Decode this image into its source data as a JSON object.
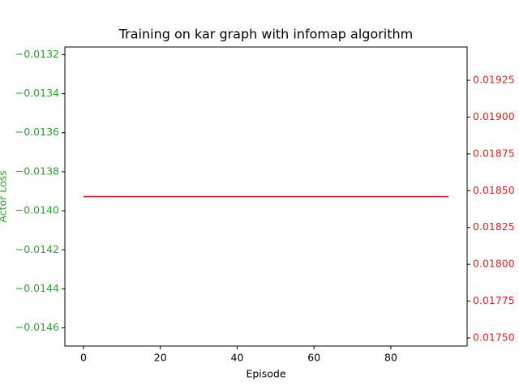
{
  "chart_data": {
    "type": "line",
    "title": "Training on kar graph with infomap algorithm",
    "xlabel": "Episode",
    "ylabel": "Actor Loss",
    "x": [
      0,
      1,
      2,
      3,
      4,
      5,
      6,
      7,
      8,
      9,
      10,
      11,
      12,
      13,
      14,
      15,
      16,
      17,
      18,
      19,
      20,
      21,
      22,
      23,
      24,
      25,
      26,
      27,
      28,
      29,
      30,
      31,
      32,
      33,
      34,
      35,
      36,
      37,
      38,
      39,
      40,
      41,
      42,
      43,
      44,
      45,
      46,
      47,
      48,
      49,
      50,
      51,
      52,
      53,
      54,
      55,
      56,
      57,
      58,
      59,
      60,
      61,
      62,
      63,
      64,
      65,
      66,
      67,
      68,
      69,
      70,
      71,
      72,
      73,
      74,
      75,
      76,
      77,
      78,
      79,
      80,
      81,
      82,
      83,
      84,
      85,
      86,
      87,
      88,
      89,
      90,
      91,
      92,
      93,
      94,
      95
    ],
    "series": [
      {
        "name": "Actor Loss",
        "color": "#2ca02c",
        "axis": "y",
        "values": [
          -0.013927,
          -0.013927,
          -0.013927,
          -0.013927,
          -0.013927,
          -0.013927,
          -0.013927,
          -0.013927,
          -0.013927,
          -0.013927,
          -0.013927,
          -0.013927,
          -0.013927,
          -0.013927,
          -0.013927,
          -0.013927,
          -0.013927,
          -0.013927,
          -0.013927,
          -0.013927,
          -0.013927,
          -0.013927,
          -0.013927,
          -0.013927,
          -0.013927,
          -0.013927,
          -0.013927,
          -0.013927,
          -0.013927,
          -0.013927,
          -0.013927,
          -0.013927,
          -0.013927,
          -0.013927,
          -0.013927,
          -0.013927,
          -0.013927,
          -0.013927,
          -0.013927,
          -0.013927,
          -0.013927,
          -0.013927,
          -0.013927,
          -0.013927,
          -0.013927,
          -0.013927,
          -0.013927,
          -0.013927,
          -0.013927,
          -0.013927,
          -0.013927,
          -0.013927,
          -0.013927,
          -0.013927,
          -0.013927,
          -0.013927,
          -0.013927,
          -0.013927,
          -0.013927,
          -0.013927,
          -0.013927,
          -0.013927,
          -0.013927,
          -0.013927,
          -0.013927,
          -0.013927,
          -0.013927,
          -0.013927,
          -0.013927,
          -0.013927,
          -0.013927,
          -0.013927,
          -0.013927,
          -0.013927,
          -0.013927,
          -0.013927,
          -0.013927,
          -0.013927,
          -0.013927,
          -0.013927,
          -0.013927,
          -0.013927,
          -0.013927,
          -0.013927,
          -0.013927,
          -0.013927,
          -0.013927,
          -0.013927,
          -0.013927,
          -0.013927,
          -0.013927,
          -0.013927,
          -0.013927,
          -0.013927,
          -0.013927,
          -0.013927
        ]
      },
      {
        "color": "#d62728",
        "axis": "y2",
        "values": [
          0.01846,
          0.01846,
          0.01846,
          0.01846,
          0.01846,
          0.01846,
          0.01846,
          0.01846,
          0.01846,
          0.01846,
          0.01846,
          0.01846,
          0.01846,
          0.01846,
          0.01846,
          0.01846,
          0.01846,
          0.01846,
          0.01846,
          0.01846,
          0.01846,
          0.01846,
          0.01846,
          0.01846,
          0.01846,
          0.01846,
          0.01846,
          0.01846,
          0.01846,
          0.01846,
          0.01846,
          0.01846,
          0.01846,
          0.01846,
          0.01846,
          0.01846,
          0.01846,
          0.01846,
          0.01846,
          0.01846,
          0.01846,
          0.01846,
          0.01846,
          0.01846,
          0.01846,
          0.01846,
          0.01846,
          0.01846,
          0.01846,
          0.01846,
          0.01846,
          0.01846,
          0.01846,
          0.01846,
          0.01846,
          0.01846,
          0.01846,
          0.01846,
          0.01846,
          0.01846,
          0.01846,
          0.01846,
          0.01846,
          0.01846,
          0.01846,
          0.01846,
          0.01846,
          0.01846,
          0.01846,
          0.01846,
          0.01846,
          0.01846,
          0.01846,
          0.01846,
          0.01846,
          0.01846,
          0.01846,
          0.01846,
          0.01846,
          0.01846,
          0.01846,
          0.01846,
          0.01846,
          0.01846,
          0.01846,
          0.01846,
          0.01846,
          0.01846,
          0.01846,
          0.01846,
          0.01846,
          0.01846,
          0.01846,
          0.01846,
          0.01846,
          0.01846
        ]
      }
    ],
    "xlim": [
      -4.85,
      99.85
    ],
    "xticks": [
      0,
      20,
      40,
      60,
      80
    ],
    "ylim": [
      -0.014693,
      -0.013161
    ],
    "yticks": [
      {
        "value": -0.0146,
        "label": "−0.0146"
      },
      {
        "value": -0.0144,
        "label": "−0.0144"
      },
      {
        "value": -0.0142,
        "label": "−0.0142"
      },
      {
        "value": -0.014,
        "label": "−0.0140"
      },
      {
        "value": -0.0138,
        "label": "−0.0138"
      },
      {
        "value": -0.0136,
        "label": "−0.0136"
      },
      {
        "value": -0.0134,
        "label": "−0.0134"
      },
      {
        "value": -0.0132,
        "label": "−0.0132"
      }
    ],
    "y2lim": [
      0.017445,
      0.019476
    ],
    "y2ticks": [
      {
        "value": 0.0175,
        "label": "0.01750"
      },
      {
        "value": 0.01775,
        "label": "0.01775"
      },
      {
        "value": 0.018,
        "label": "0.01800"
      },
      {
        "value": 0.01825,
        "label": "0.01825"
      },
      {
        "value": 0.0185,
        "label": "0.01850"
      },
      {
        "value": 0.01875,
        "label": "0.01875"
      },
      {
        "value": 0.019,
        "label": "0.01900"
      },
      {
        "value": 0.01925,
        "label": "0.01925"
      }
    ],
    "ycolor": "#2ca02c",
    "y2color": "#d62728"
  }
}
